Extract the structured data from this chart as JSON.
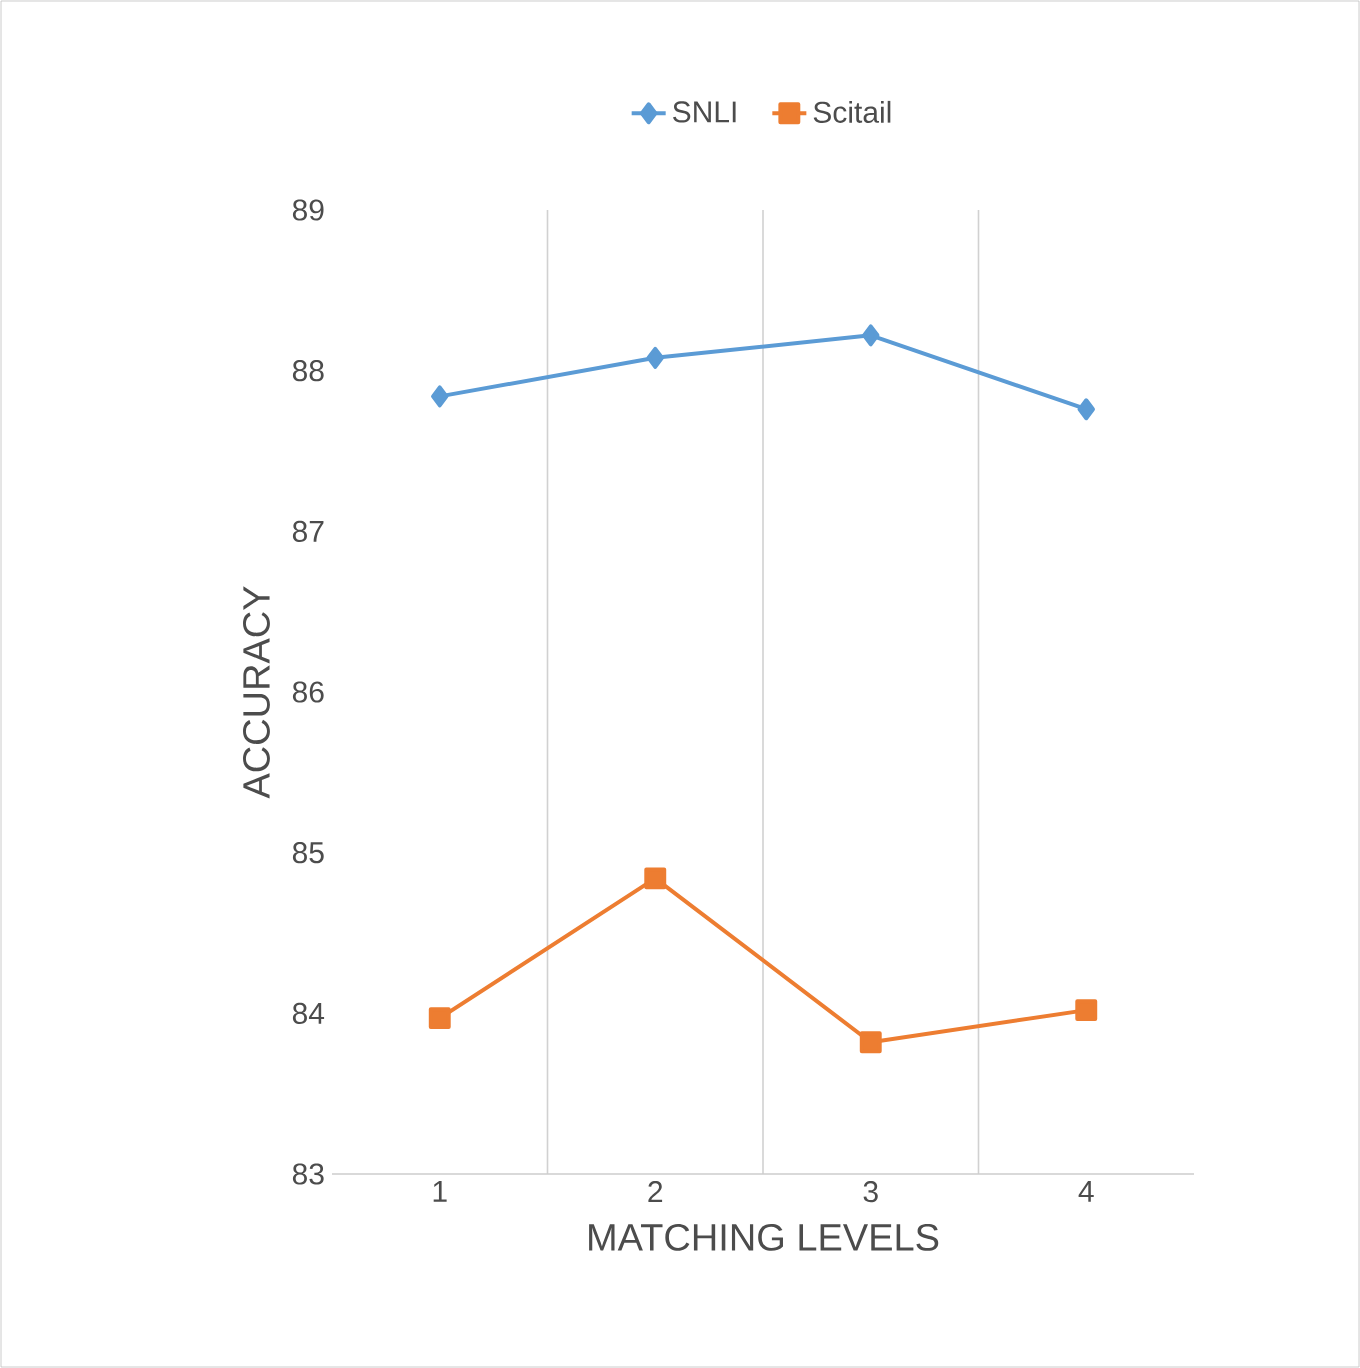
{
  "chart_data": {
    "type": "line",
    "xlabel": "MATCHING LEVELS",
    "ylabel": "ACCURACY",
    "categories": [
      "1",
      "2",
      "3",
      "4"
    ],
    "series": [
      {
        "name": "SNLI",
        "color": "#5b9bd5",
        "marker": "diamond",
        "values": [
          87.84,
          88.08,
          88.22,
          87.76
        ]
      },
      {
        "name": "Scitail",
        "color": "#ed7d31",
        "marker": "square",
        "values": [
          83.97,
          84.84,
          83.82,
          84.02
        ]
      }
    ],
    "ylim": [
      83,
      89
    ],
    "yticks": [
      83,
      84,
      85,
      86,
      87,
      88,
      89
    ],
    "grid": "x",
    "legend": "top",
    "line_style": "solid"
  }
}
